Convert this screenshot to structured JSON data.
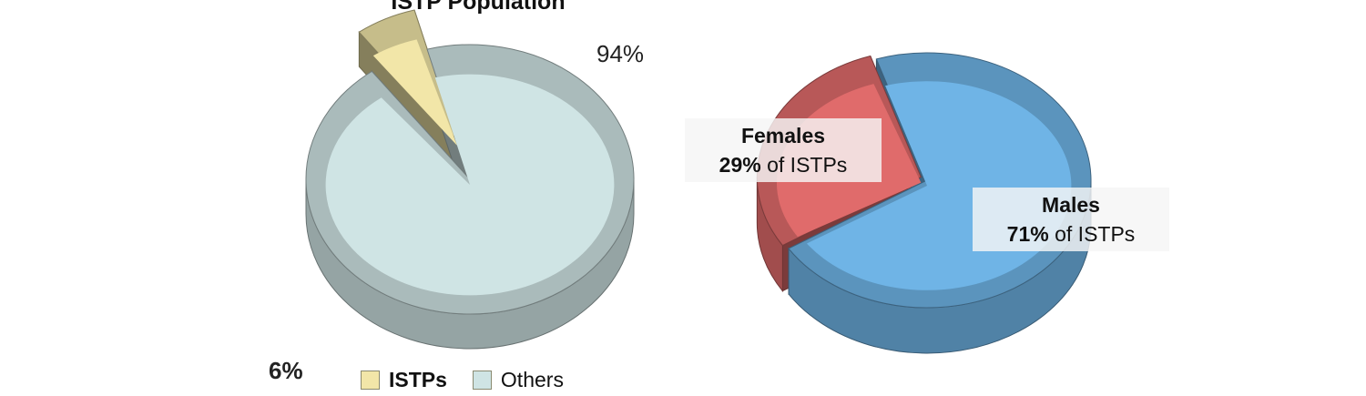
{
  "chart_data": [
    {
      "type": "pie",
      "title": "ISTP Population",
      "slices": [
        {
          "label": "ISTPs",
          "value": 6,
          "value_label": "6%",
          "color": "#f2e6a8"
        },
        {
          "label": "Others",
          "value": 94,
          "value_label": "94%",
          "color": "#cfe4e4"
        }
      ],
      "legend": {
        "position": "bottom",
        "entries": [
          "ISTPs",
          "Others"
        ]
      },
      "style": "3d-exploded"
    },
    {
      "type": "pie",
      "title": "",
      "slices": [
        {
          "label": "Females",
          "value": 29,
          "value_label": "29%",
          "suffix": "of ISTPs",
          "color": "#e06b6b"
        },
        {
          "label": "Males",
          "value": 71,
          "value_label": "71%",
          "suffix": "of ISTPs",
          "color": "#6fb4e6"
        }
      ],
      "style": "3d"
    }
  ]
}
